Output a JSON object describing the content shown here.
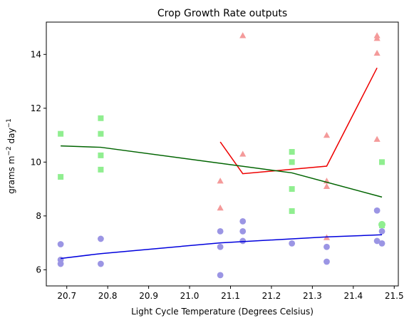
{
  "chart_data": {
    "type": "scatter",
    "title": "Crop Growth Rate outputs",
    "xlabel": "Light Cycle Temperature (Degrees Celsius)",
    "ylabel_parts": {
      "base": "grams m",
      "exp1": "−2",
      "mid": " day",
      "exp2": "−1"
    },
    "xlim": [
      20.65,
      21.51
    ],
    "ylim": [
      5.4,
      15.2
    ],
    "x_ticks": [
      20.7,
      20.8,
      20.9,
      21.0,
      21.1,
      21.2,
      21.3,
      21.4,
      21.5
    ],
    "x_tick_labels": [
      "20.7",
      "20.8",
      "20.9",
      "21.0",
      "21.1",
      "21.2",
      "21.3",
      "21.4",
      "21.5"
    ],
    "y_ticks": [
      6,
      8,
      10,
      12,
      14
    ],
    "y_tick_labels": [
      "6",
      "8",
      "10",
      "12",
      "14"
    ],
    "grid": false,
    "legend": "none",
    "series": [
      {
        "marker": "triangle",
        "color": "#f49a9a",
        "line_color": "#ee0000",
        "points": [
          [
            21.075,
            9.3
          ],
          [
            21.075,
            8.3
          ],
          [
            21.13,
            14.7
          ],
          [
            21.13,
            10.3
          ],
          [
            21.335,
            11.0
          ],
          [
            21.335,
            9.3
          ],
          [
            21.335,
            9.1
          ],
          [
            21.335,
            7.2
          ],
          [
            21.458,
            14.7
          ],
          [
            21.458,
            14.6
          ],
          [
            21.458,
            14.05
          ],
          [
            21.458,
            10.85
          ]
        ],
        "line": [
          [
            21.075,
            10.75
          ],
          [
            21.13,
            9.57
          ],
          [
            21.335,
            9.85
          ],
          [
            21.458,
            13.5
          ]
        ]
      },
      {
        "marker": "square",
        "color": "#90ee90",
        "line_color": "#006400",
        "points": [
          [
            20.685,
            11.05
          ],
          [
            20.685,
            9.45
          ],
          [
            20.783,
            11.63
          ],
          [
            20.783,
            11.05
          ],
          [
            20.783,
            10.25
          ],
          [
            20.783,
            9.72
          ],
          [
            21.25,
            10.38
          ],
          [
            21.25,
            10.0
          ],
          [
            21.25,
            9.0
          ],
          [
            21.25,
            8.18
          ],
          [
            21.47,
            10.0
          ],
          [
            21.47,
            7.65
          ]
        ],
        "line": [
          [
            20.685,
            10.6
          ],
          [
            20.783,
            10.55
          ],
          [
            21.25,
            9.6
          ],
          [
            21.47,
            8.7
          ]
        ]
      },
      {
        "marker": "circle",
        "color": "#9b95e4",
        "line_color": "#0000dd",
        "points": [
          [
            20.685,
            6.95
          ],
          [
            20.685,
            6.37
          ],
          [
            20.685,
            6.22
          ],
          [
            20.783,
            7.15
          ],
          [
            20.783,
            6.22
          ],
          [
            21.075,
            7.43
          ],
          [
            21.075,
            6.85
          ],
          [
            21.075,
            5.8
          ],
          [
            21.13,
            7.8
          ],
          [
            21.13,
            7.43
          ],
          [
            21.13,
            7.07
          ],
          [
            21.25,
            6.98
          ],
          [
            21.335,
            6.85
          ],
          [
            21.335,
            6.3
          ],
          [
            21.458,
            8.2
          ],
          [
            21.458,
            7.07
          ],
          [
            21.47,
            7.43
          ],
          [
            21.47,
            6.98
          ]
        ],
        "line": [
          [
            20.685,
            6.42
          ],
          [
            20.783,
            6.6
          ],
          [
            21.075,
            7.0
          ],
          [
            21.335,
            7.22
          ],
          [
            21.47,
            7.3
          ]
        ]
      }
    ],
    "highlight_point": {
      "x": 21.47,
      "y": 7.68,
      "color": "#90ee90",
      "marker": "circle"
    }
  }
}
